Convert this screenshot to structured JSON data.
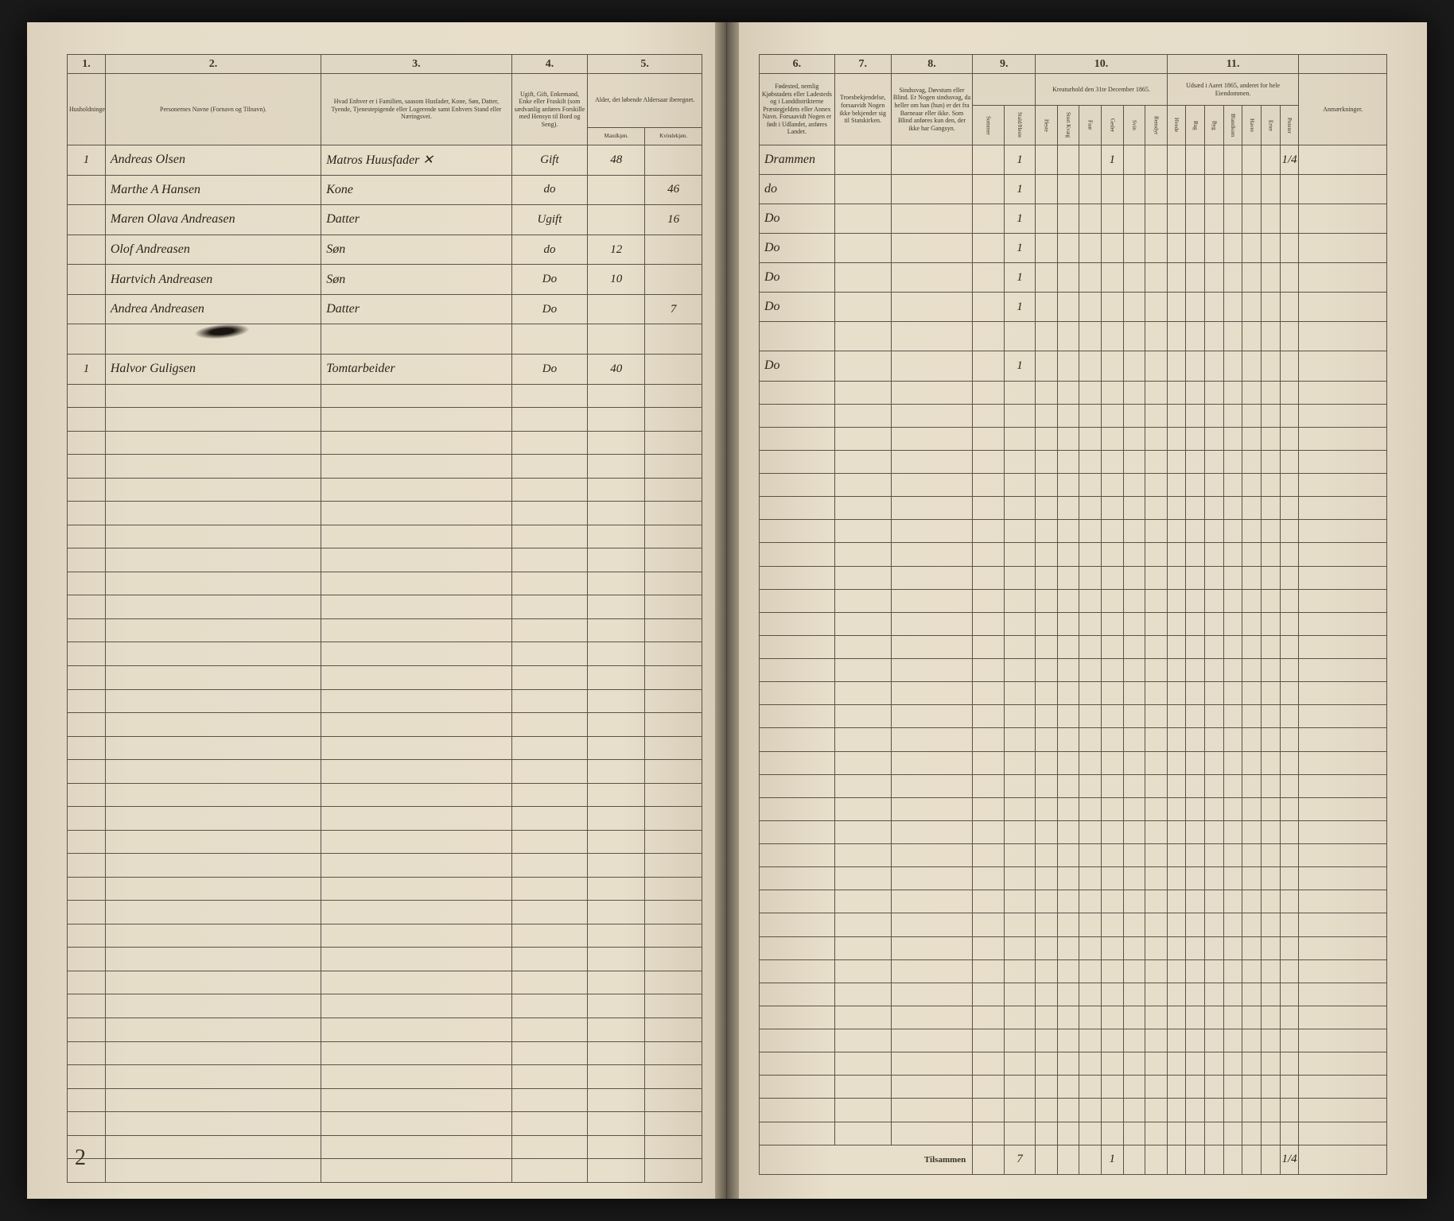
{
  "colors": {
    "paper": "#e6ddc9",
    "ink": "#2a2518",
    "rule": "#5a5248",
    "background": "#1a1a1a"
  },
  "typography": {
    "print_family": "Georgia, Times New Roman, serif",
    "script_family": "Brush Script MT, Segoe Script, cursive",
    "header_num_size_pt": 14,
    "header_text_size_pt": 8,
    "handwriting_size_pt": 16
  },
  "layout": {
    "type": "table",
    "pages": 2,
    "blank_row_count": 34
  },
  "left": {
    "columns": [
      {
        "num": "1.",
        "header": "Husholdninger."
      },
      {
        "num": "2.",
        "header": "Personernes Navne (Fornavn og Tilnavn)."
      },
      {
        "num": "3.",
        "header": "Hvad Enhver er i Familien, saasom Husfader, Kone, Søn, Datter, Tyende, Tjenestepigende eller Logerende samt Enhvers Stand eller Næringsvei."
      },
      {
        "num": "4.",
        "header": "Ugift, Gift, Enkemand, Enke eller Fraskilt (som sædvanlig anføres Forskille med Hensyn til Bord og Seng)."
      },
      {
        "num": "5.",
        "header": "Alder, det løbende Aldersaar iberegnet.",
        "sub": [
          "Mandkjøn.",
          "Kvindekjøn."
        ]
      }
    ]
  },
  "right": {
    "columns": [
      {
        "num": "6.",
        "header": "Fødested, nemlig Kjøbstadets eller Ladesteds og i Landdistrikterne Præstegjeldets eller Annex Navn. Forsaavidt Nogen er født i Udlandet, anføres Landet."
      },
      {
        "num": "7.",
        "header": "Troesbekjendelse, forsaavidt Nogen ikke bekjender sig til Statskirken."
      },
      {
        "num": "8.",
        "header": "Sindssvag, Døvstum eller Blind. Er Nogen sindssvag, da heller om han (hun) er det fra Barneaar eller ikke. Som Blind anføres kun den, der ikke har Gangsyn."
      },
      {
        "num": "9.",
        "header": "",
        "sub": [
          "Sommer",
          "Stald/Heste"
        ]
      },
      {
        "num": "10.",
        "header": "Kreaturhold den 31te December 1865.",
        "sub": [
          "Heste",
          "Stort Kvæg",
          "Faar",
          "Geder",
          "Svin",
          "Rensdyr"
        ]
      },
      {
        "num": "11.",
        "header": "Udsæd i Aaret 1865, anderet for hele Eiendommen.",
        "sub": [
          "Hvede",
          "Rug",
          "Byg",
          "Blandkorn",
          "Havre",
          "Erter",
          "Poteter"
        ]
      },
      {
        "num": "",
        "header": "Anmærkninger."
      }
    ]
  },
  "rows": [
    {
      "hh": "1",
      "name": "Andreas Olsen",
      "role": "Matros Huusfader ✕",
      "status": "Gift",
      "m": "48",
      "k": "",
      "birthplace": "Drammen",
      "col9b": "1",
      "col10_4": "1",
      "c11_7": "1/4"
    },
    {
      "hh": "",
      "name": "Marthe A Hansen",
      "role": "Kone",
      "status": "do",
      "m": "",
      "k": "46",
      "birthplace": "do",
      "col9b": "1"
    },
    {
      "hh": "",
      "name": "Maren Olava Andreasen",
      "role": "Datter",
      "status": "Ugift",
      "m": "",
      "k": "16",
      "birthplace": "Do",
      "col9b": "1"
    },
    {
      "hh": "",
      "name": "Olof Andreasen",
      "role": "Søn",
      "status": "do",
      "m": "12",
      "k": "",
      "birthplace": "Do",
      "col9b": "1"
    },
    {
      "hh": "",
      "name": "Hartvich Andreasen",
      "role": "Søn",
      "status": "Do",
      "m": "10",
      "k": "",
      "birthplace": "Do",
      "col9b": "1"
    },
    {
      "hh": "",
      "name": "Andrea Andreasen",
      "role": "Datter",
      "status": "Do",
      "m": "",
      "k": "7",
      "birthplace": "Do",
      "col9b": "1"
    },
    {
      "hh": "",
      "name": "",
      "role": "",
      "status": "",
      "m": "",
      "k": "",
      "birthplace": "",
      "col9b": ""
    },
    {
      "hh": "1",
      "name": "Halvor Guligsen",
      "role": "Tomtarbeider",
      "status": "Do",
      "m": "40",
      "k": "",
      "birthplace": "Do",
      "col9b": "1"
    }
  ],
  "totals": {
    "label": "Tilsammen",
    "col9b": "7",
    "col10_4": "1",
    "c11_7": "1/4"
  },
  "page_number": "2"
}
